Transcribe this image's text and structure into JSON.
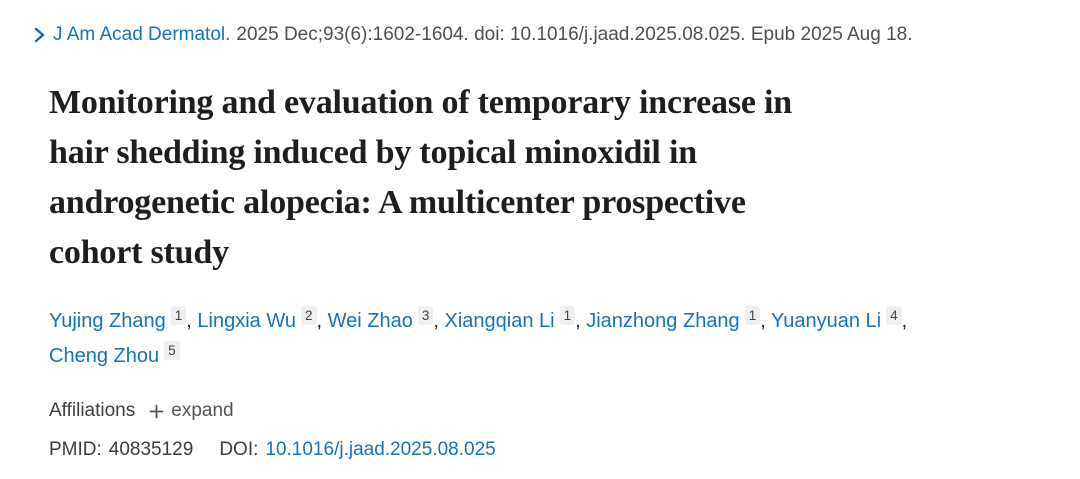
{
  "citation": {
    "journal": "J Am Acad Dermatol.",
    "details": "2025 Dec;93(6):1602-1604. doi: 10.1016/j.jaad.2025.08.025. Epub 2025 Aug 18."
  },
  "title": {
    "full": "Monitoring and evaluation of temporary increase in hair shedding induced by topical minoxidil in androgenetic alopecia: A multicenter prospective cohort study",
    "lines": [
      "Monitoring and evaluation of temporary increase in",
      "hair shedding induced by topical minoxidil in",
      "androgenetic alopecia: A multicenter prospective",
      "cohort study"
    ]
  },
  "authors": [
    {
      "name": "Yujing Zhang",
      "affiliation": "1"
    },
    {
      "name": "Lingxia Wu",
      "affiliation": "2"
    },
    {
      "name": "Wei Zhao",
      "affiliation": "3"
    },
    {
      "name": "Xiangqian Li",
      "affiliation": "1"
    },
    {
      "name": "Jianzhong Zhang",
      "affiliation": "1"
    },
    {
      "name": "Yuanyuan Li",
      "affiliation": "4"
    },
    {
      "name": "Cheng Zhou",
      "affiliation": "5"
    }
  ],
  "affiliations": {
    "label": "Affiliations",
    "expand_label": "expand"
  },
  "identifiers": {
    "pmid_label": "PMID:",
    "pmid": "40835129",
    "doi_label": "DOI:",
    "doi": "10.1016/j.jaad.2025.08.025"
  },
  "icons": {
    "chevron": "chevron-right-icon",
    "plus": "plus-icon"
  },
  "colors": {
    "link_blue": "#1473be",
    "title_dark": "#1e1e1e",
    "citation_gray": "#4f4f4f",
    "badge_bg": "#efefef"
  }
}
